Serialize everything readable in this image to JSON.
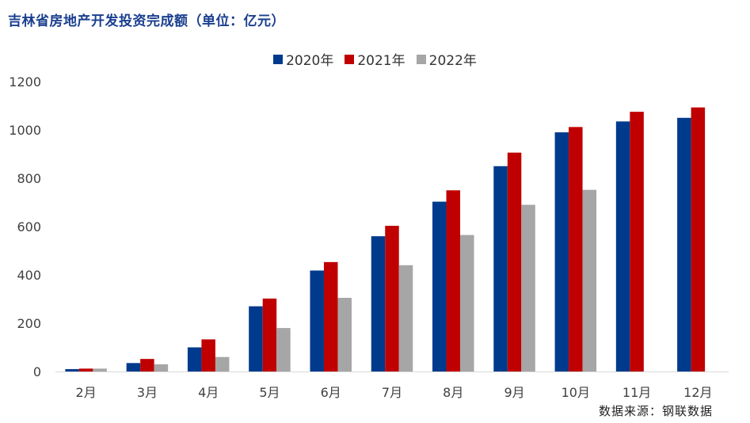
{
  "title": "吉林省房地产开发投资完成额（单位：亿元）",
  "source": "数据来源：钢联数据",
  "colors": {
    "title": "#1a3f8f",
    "series_2020": "#003a8c",
    "series_2021": "#c00000",
    "series_2022": "#a6a6a6",
    "axis": "#d9d9d9"
  },
  "chart_data": {
    "type": "bar",
    "title": "吉林省房地产开发投资完成额（单位：亿元）",
    "xlabel": "",
    "ylabel": "",
    "categories": [
      "2月",
      "3月",
      "4月",
      "5月",
      "6月",
      "7月",
      "8月",
      "9月",
      "10月",
      "11月",
      "12月"
    ],
    "series": [
      {
        "name": "2020年",
        "color": "#003a8c",
        "values": [
          10,
          35,
          100,
          270,
          418,
          560,
          703,
          850,
          990,
          1035,
          1050
        ]
      },
      {
        "name": "2021年",
        "color": "#c00000",
        "values": [
          12,
          52,
          133,
          302,
          453,
          603,
          750,
          906,
          1012,
          1075,
          1093
        ]
      },
      {
        "name": "2022年",
        "color": "#a6a6a6",
        "values": [
          12,
          30,
          60,
          180,
          305,
          440,
          565,
          690,
          752,
          null,
          null
        ]
      }
    ],
    "ylim": [
      0,
      1200
    ],
    "yticks": [
      0,
      200,
      400,
      600,
      800,
      1000,
      1200
    ],
    "grid": false,
    "legend_position": "top-center"
  }
}
